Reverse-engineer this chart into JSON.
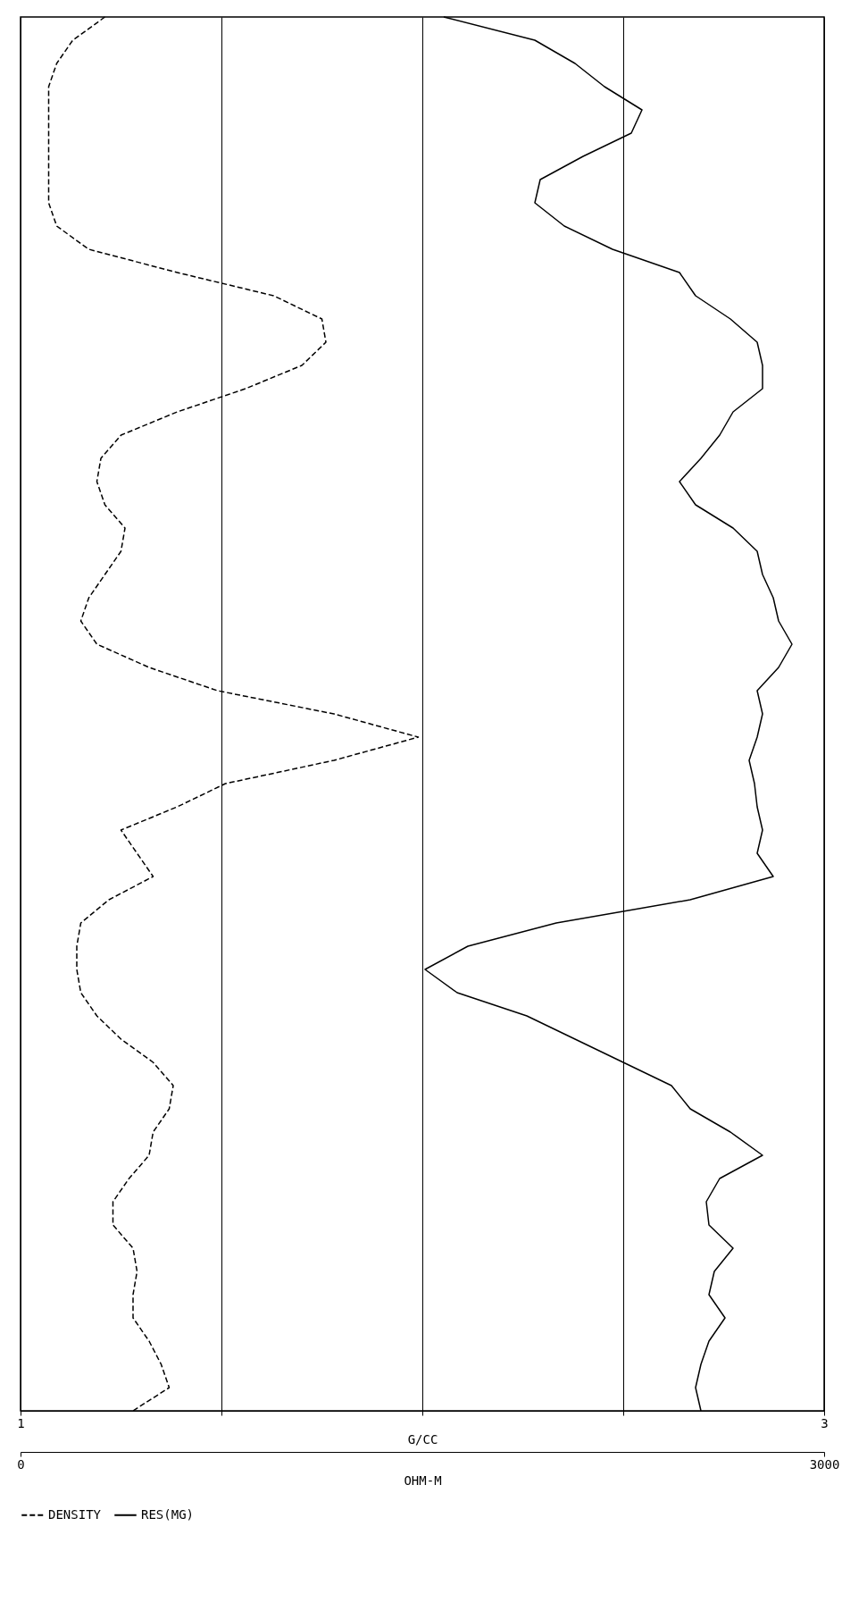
{
  "chart_data": {
    "type": "line",
    "orientation": "horizontal",
    "xlabel": "G/CC",
    "x2label": "OHM-M",
    "categories": [
      null,
      null,
      null,
      null,
      null,
      null,
      null,
      null,
      null,
      null,
      null,
      null,
      null,
      null,
      null,
      null,
      null,
      null,
      null,
      null,
      null,
      null,
      null,
      null,
      null,
      null,
      null,
      null,
      null,
      null,
      null,
      null,
      null,
      null,
      null,
      null,
      null,
      null,
      null,
      null,
      null,
      null,
      null,
      null,
      null,
      null,
      null,
      null,
      null,
      null,
      null,
      null,
      null,
      null,
      null,
      null,
      null,
      null,
      null,
      null,
      null
    ],
    "xlim": [
      1,
      3
    ],
    "xticks": [
      1,
      {
        "value": 1.5,
        "label": null
      },
      {
        "value": 2,
        "label": null
      },
      {
        "value": 2.5,
        "label": null
      },
      3
    ],
    "x2lim": [
      0,
      3000
    ],
    "x2ticks": [
      0,
      3000
    ],
    "grid": "x",
    "legend": "bottom",
    "marker": "none",
    "series": [
      {
        "name": "DENSITY",
        "color": "#000000",
        "line_style": "dashed",
        "values": [
          1.21,
          1.13,
          1.09,
          1.07,
          1.07,
          1.07,
          1.07,
          1.07,
          1.07,
          1.09,
          1.17,
          1.39,
          1.63,
          1.75,
          1.76,
          1.7,
          1.56,
          1.39,
          1.25,
          1.2,
          1.19,
          1.21,
          1.26,
          1.25,
          1.21,
          1.17,
          1.15,
          1.19,
          1.32,
          1.49,
          1.78,
          1.99,
          1.78,
          1.51,
          1.39,
          1.25,
          1.29,
          1.33,
          1.22,
          1.15,
          1.14,
          1.14,
          1.15,
          1.19,
          1.25,
          1.33,
          1.38,
          1.37,
          1.33,
          1.32,
          1.27,
          1.23,
          1.23,
          1.28,
          1.29,
          1.28,
          1.28,
          1.32,
          1.35,
          1.37,
          1.28
        ]
      },
      {
        "name": "RES(MG)",
        "color": "#000000",
        "line_style": "solid",
        "axis": "x2",
        "values": [
          1580,
          1920,
          2070,
          2180,
          2320,
          2280,
          2100,
          1940,
          1920,
          2030,
          2210,
          2460,
          2520,
          2650,
          2750,
          2770,
          2770,
          2660,
          2610,
          2540,
          2460,
          2520,
          2660,
          2750,
          2770,
          2810,
          2830,
          2880,
          2830,
          2750,
          2770,
          2750,
          2720,
          2740,
          2750,
          2770,
          2750,
          2810,
          2500,
          2000,
          1670,
          1510,
          1630,
          1890,
          2070,
          2250,
          2430,
          2500,
          2650,
          2770,
          2610,
          2560,
          2570,
          2660,
          2590,
          2570,
          2630,
          2570,
          2540,
          2520,
          2540
        ]
      }
    ]
  }
}
